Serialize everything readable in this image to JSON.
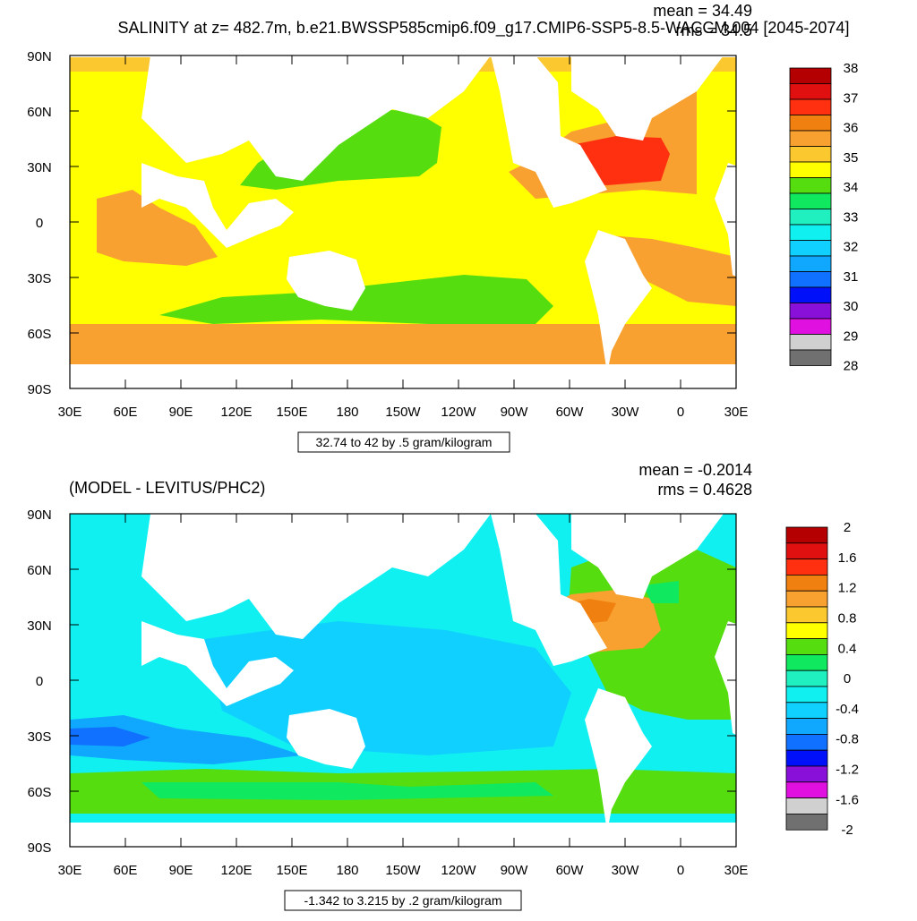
{
  "top_panel": {
    "title": "SALINITY at z= 482.7m, b.e21.BWSSP585cmip6.f09_g17.CMIP6-SSP5-8.5-WACCM.004 [2045-2074]",
    "mean_label": "mean = 34.49",
    "rms_label": "rms = 34.5",
    "lat_labels": [
      "90N",
      "60N",
      "30N",
      "0",
      "30S",
      "60S",
      "90S"
    ],
    "lon_labels": [
      "30E",
      "60E",
      "90E",
      "120E",
      "150E",
      "180",
      "150W",
      "120W",
      "90W",
      "60W",
      "30W",
      "0",
      "30E"
    ],
    "contour_info": "32.74 to 42 by .5 gram/kilogram",
    "colorbar": {
      "labels": [
        "38",
        "37",
        "36",
        "35",
        "34",
        "33",
        "32",
        "31",
        "30",
        "29",
        "28"
      ],
      "colors": [
        "#b40000",
        "#e01010",
        "#ff3010",
        "#f08010",
        "#f8a030",
        "#fcc830",
        "#ffff00",
        "#55dd10",
        "#10e860",
        "#20f0c0",
        "#10f0f0",
        "#10d0ff",
        "#10a8ff",
        "#1070ff",
        "#0010f8",
        "#8810d8",
        "#e010e0",
        "#d0d0d0",
        "#707070"
      ]
    }
  },
  "bottom_panel": {
    "title": "(MODEL - LEVITUS/PHC2)",
    "mean_label": "mean = -0.2014",
    "rms_label": "rms = 0.4628",
    "lat_labels": [
      "90N",
      "60N",
      "30N",
      "0",
      "30S",
      "60S",
      "90S"
    ],
    "lon_labels": [
      "30E",
      "60E",
      "90E",
      "120E",
      "150E",
      "180",
      "150W",
      "120W",
      "90W",
      "60W",
      "30W",
      "0",
      "30E"
    ],
    "contour_info": "-1.342 to 3.215 by .2 gram/kilogram",
    "colorbar": {
      "labels": [
        "2",
        "1.6",
        "1.2",
        "0.8",
        "0.4",
        "0",
        "-0.4",
        "-0.8",
        "-1.2",
        "-1.6",
        "-2"
      ],
      "colors": [
        "#b40000",
        "#e01010",
        "#ff3010",
        "#f08010",
        "#f8a030",
        "#fcc830",
        "#ffff00",
        "#55dd10",
        "#10e860",
        "#20f0c0",
        "#10f0f0",
        "#10d0ff",
        "#10a8ff",
        "#1070ff",
        "#0010f8",
        "#8810d8",
        "#e010e0",
        "#d0d0d0",
        "#707070"
      ]
    }
  }
}
